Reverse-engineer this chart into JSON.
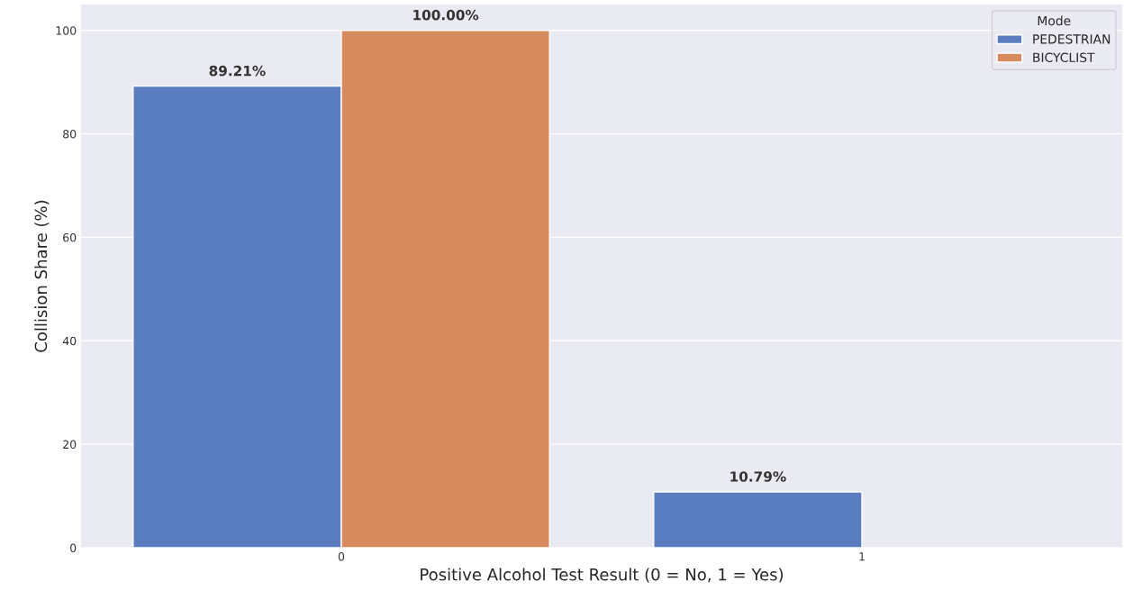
{
  "chart_data": {
    "type": "bar",
    "xlabel": "Positive Alcohol Test Result (0 = No, 1 = Yes)",
    "ylabel": "Collision Share (%)",
    "legend_title": "Mode",
    "categories": [
      "0",
      "1"
    ],
    "series": [
      {
        "name": "PEDESTRIAN",
        "color": "#5a7dc0",
        "values": [
          89.21,
          10.79
        ],
        "value_labels": [
          "89.21%",
          "10.79%"
        ]
      },
      {
        "name": "BICYCLIST",
        "color": "#d78a5e",
        "values": [
          100.0,
          null
        ],
        "value_labels": [
          "100.00%",
          null
        ]
      }
    ],
    "ylim": [
      0,
      105
    ],
    "yticks": [
      0,
      20,
      40,
      60,
      80,
      100
    ],
    "grid": "y",
    "legend": "top right"
  }
}
